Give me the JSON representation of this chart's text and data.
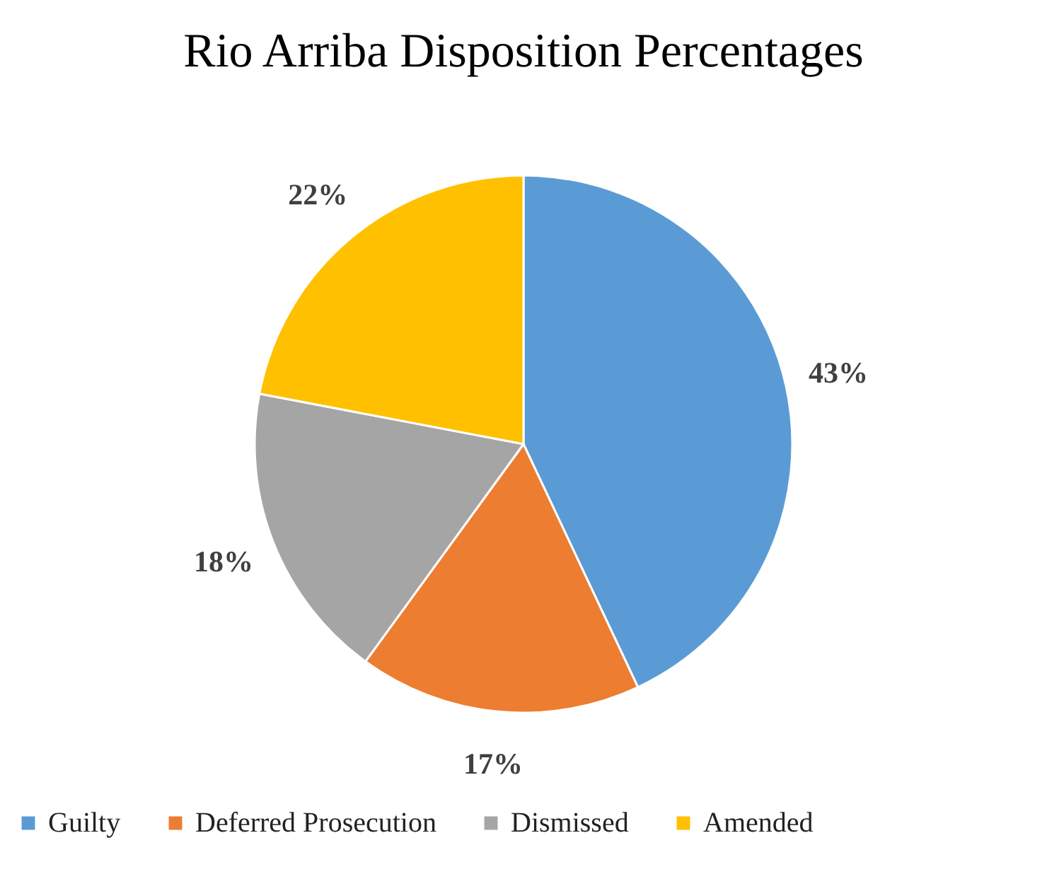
{
  "chart_data": {
    "type": "pie",
    "title": "Rio Arriba Disposition Percentages",
    "categories": [
      "Guilty",
      "Deferred Prosecution",
      "Dismissed",
      "Amended"
    ],
    "values": [
      43,
      17,
      18,
      22
    ],
    "colors": [
      "#5b9bd5",
      "#ed7d31",
      "#a5a5a5",
      "#ffc000"
    ],
    "value_labels": [
      "43%",
      "17%",
      "18%",
      "22%"
    ],
    "legend": "bottom"
  }
}
